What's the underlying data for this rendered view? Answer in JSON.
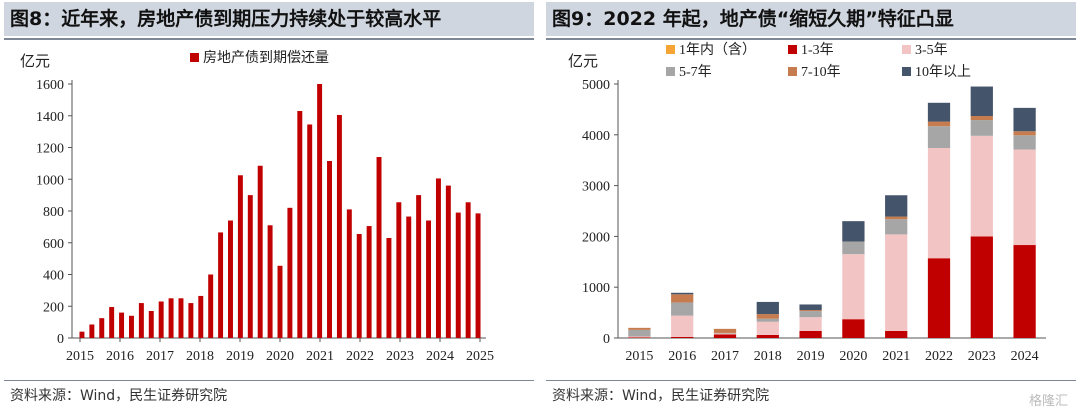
{
  "left_panel": {
    "title": "图8：近年来，房地产债到期压力持续处于较高水平",
    "source": "资料来源：Wind，民生证券研究院"
  },
  "right_panel": {
    "title": "图9：2022 年起，地产债“缩短久期”特征凸显",
    "source": "资料来源：Wind，民生证券研究院"
  },
  "watermark": "格隆汇",
  "colors": {
    "bar_red": "#c00000",
    "seg_1y": "#f4a533",
    "seg_1_3": "#c00000",
    "seg_3_5": "#f2c4c4",
    "seg_5_7": "#a6a6a6",
    "seg_7_10": "#c67c4e",
    "seg_10p": "#44546a"
  },
  "chart_data": [
    {
      "type": "bar",
      "ylabel": "亿元",
      "ylim": [
        0,
        1600
      ],
      "yticks": [
        0,
        200,
        400,
        600,
        800,
        1000,
        1200,
        1400,
        1600
      ],
      "x_tick_labels": [
        "2015",
        "2016",
        "2017",
        "2018",
        "2019",
        "2020",
        "2021",
        "2022",
        "2023",
        "2024",
        "2025"
      ],
      "legend_position": "top-center",
      "series": [
        {
          "name": "房地产债到期偿还量",
          "values": [
            40,
            85,
            125,
            195,
            160,
            140,
            220,
            170,
            230,
            250,
            250,
            220,
            265,
            400,
            665,
            740,
            1025,
            900,
            1085,
            710,
            455,
            820,
            1430,
            1345,
            1600,
            1115,
            1405,
            810,
            655,
            705,
            1140,
            630,
            855,
            765,
            900,
            740,
            1005,
            960,
            790,
            855,
            785
          ]
        }
      ]
    },
    {
      "type": "bar",
      "stacked": true,
      "ylabel": "亿元",
      "ylim": [
        0,
        5000
      ],
      "yticks": [
        0,
        1000,
        2000,
        3000,
        4000,
        5000
      ],
      "categories": [
        "2015",
        "2016",
        "2017",
        "2018",
        "2019",
        "2020",
        "2021",
        "2022",
        "2023",
        "2024"
      ],
      "legend_position": "top",
      "series": [
        {
          "name": "1年内（含）",
          "values": [
            0,
            0,
            0,
            0,
            0,
            0,
            0,
            0,
            0,
            0
          ]
        },
        {
          "name": "1-3年",
          "values": [
            10,
            20,
            70,
            60,
            140,
            370,
            140,
            1570,
            2000,
            1830
          ]
        },
        {
          "name": "3-5年",
          "values": [
            20,
            420,
            20,
            260,
            270,
            1280,
            1900,
            2170,
            1980,
            1880
          ]
        },
        {
          "name": "5-7年",
          "values": [
            130,
            260,
            10,
            60,
            120,
            250,
            300,
            430,
            310,
            280
          ]
        },
        {
          "name": "7-10年",
          "values": [
            40,
            160,
            80,
            90,
            20,
            0,
            50,
            90,
            80,
            80
          ]
        },
        {
          "name": "10年以上",
          "values": [
            0,
            30,
            0,
            240,
            110,
            400,
            420,
            370,
            580,
            460
          ]
        }
      ]
    }
  ]
}
